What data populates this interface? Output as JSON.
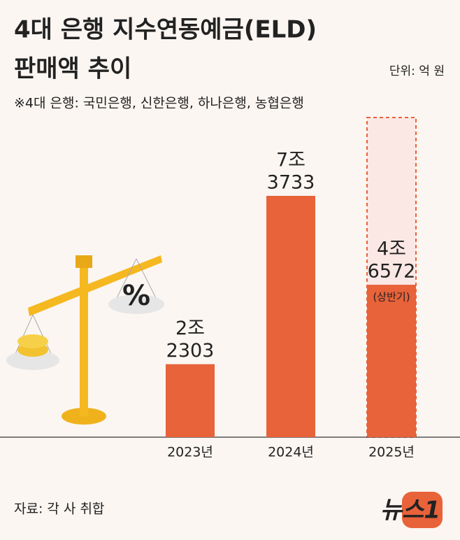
{
  "chart_data": {
    "type": "bar",
    "title": [
      "4대 은행 지수연동예금(ELD)",
      "판매액 추이"
    ],
    "unit": "단위: 억 원",
    "note": "※4대 은행: 국민은행, 신한은행, 하나은행, 농협은행",
    "categories": [
      "2023년",
      "2024년",
      "2025년"
    ],
    "values": [
      22303,
      73733,
      46572
    ],
    "value_labels": [
      [
        "2조",
        "2303"
      ],
      [
        "7조",
        "3733"
      ],
      [
        "4조",
        "6572"
      ]
    ],
    "annotation": "(상반기)",
    "color": "#e8623a",
    "source": "자료: 각 사 취합",
    "logo": "뉴스1"
  }
}
